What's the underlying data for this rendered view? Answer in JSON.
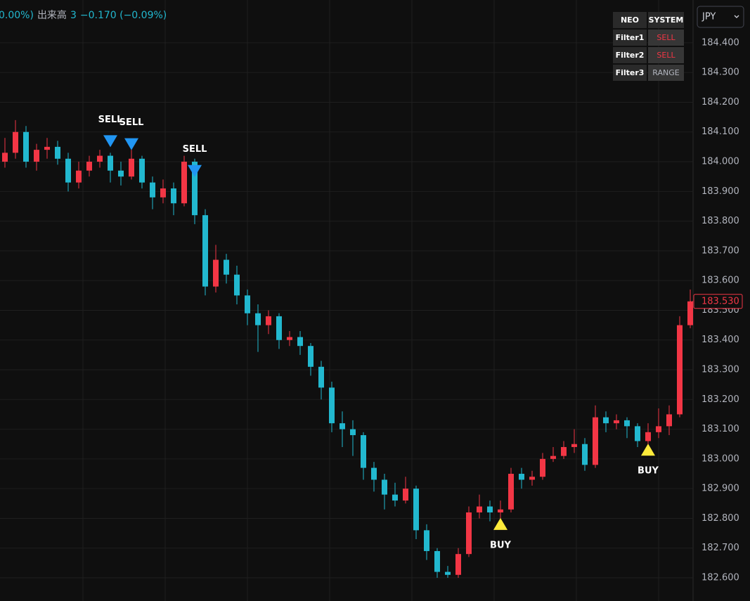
{
  "header": {
    "parts": [
      "0.00%)",
      "出来高",
      "3",
      "−0.170 (−0.09%)"
    ]
  },
  "currency": "JPY",
  "table": {
    "rows": [
      [
        "NEO",
        "SYSTEM"
      ],
      [
        "Filter1",
        "SELL"
      ],
      [
        "Filter2",
        "SELL"
      ],
      [
        "Filter3",
        "RANGE"
      ]
    ],
    "value_colors": [
      "#ffffff",
      "#f23645",
      "#f23645",
      "#b2b5be"
    ]
  },
  "chart_data": {
    "type": "candlestick",
    "up_color": "#f23645",
    "down_color": "#22b8cf",
    "grid": true,
    "open": [
      184.0,
      184.03,
      184.1,
      184.0,
      184.04,
      184.05,
      184.01,
      183.93,
      183.97,
      184.0,
      184.02,
      183.97,
      183.95,
      184.01,
      183.93,
      183.88,
      183.91,
      183.86,
      184.0,
      183.82,
      183.58,
      183.67,
      183.62,
      183.55,
      183.49,
      183.45,
      183.48,
      183.4,
      183.41,
      183.38,
      183.31,
      183.24,
      183.12,
      183.1,
      183.08,
      182.97,
      182.93,
      182.88,
      182.86,
      182.9,
      182.76,
      182.69,
      182.62,
      182.61,
      182.68,
      182.82,
      182.84,
      182.82,
      182.83,
      182.95,
      182.93,
      182.94,
      183.0,
      183.01,
      183.04,
      183.05,
      182.98,
      183.14,
      183.12,
      183.13,
      183.11,
      183.06,
      183.09,
      183.11,
      183.15,
      183.45
    ],
    "high": [
      184.08,
      184.14,
      184.12,
      184.06,
      184.08,
      184.07,
      184.03,
      184.0,
      184.02,
      184.04,
      184.03,
      184.0,
      184.04,
      184.02,
      183.95,
      183.94,
      183.93,
      184.02,
      184.01,
      183.84,
      183.72,
      183.69,
      183.65,
      183.57,
      183.52,
      183.5,
      183.49,
      183.43,
      183.43,
      183.39,
      183.33,
      183.26,
      183.16,
      183.13,
      183.09,
      182.99,
      182.95,
      182.92,
      182.94,
      182.91,
      182.78,
      182.7,
      182.64,
      182.7,
      182.84,
      182.88,
      182.86,
      182.86,
      182.97,
      182.97,
      182.96,
      183.02,
      183.04,
      183.06,
      183.1,
      183.07,
      183.18,
      183.16,
      183.15,
      183.14,
      183.12,
      183.12,
      183.17,
      183.18,
      183.48,
      183.57
    ],
    "low": [
      183.98,
      184.01,
      183.98,
      183.97,
      184.01,
      183.99,
      183.9,
      183.91,
      183.95,
      183.98,
      183.93,
      183.92,
      183.94,
      183.91,
      183.84,
      183.86,
      183.82,
      183.85,
      183.79,
      183.55,
      183.56,
      183.59,
      183.52,
      183.45,
      183.36,
      183.42,
      183.37,
      183.38,
      183.35,
      183.28,
      183.2,
      183.09,
      183.04,
      183.01,
      182.93,
      182.89,
      182.83,
      182.84,
      182.85,
      182.73,
      182.66,
      182.6,
      182.6,
      182.6,
      182.67,
      182.8,
      182.79,
      182.8,
      182.82,
      182.9,
      182.91,
      182.93,
      182.99,
      183.0,
      183.02,
      182.96,
      182.97,
      183.09,
      183.1,
      183.07,
      183.04,
      183.05,
      183.07,
      183.08,
      183.14,
      183.44
    ],
    "close": [
      184.03,
      184.1,
      184.0,
      184.04,
      184.05,
      184.01,
      183.93,
      183.97,
      184.0,
      184.02,
      183.97,
      183.95,
      184.01,
      183.93,
      183.88,
      183.91,
      183.86,
      184.0,
      183.82,
      183.58,
      183.67,
      183.62,
      183.55,
      183.49,
      183.45,
      183.48,
      183.4,
      183.41,
      183.38,
      183.31,
      183.24,
      183.12,
      183.1,
      183.08,
      182.97,
      182.93,
      182.88,
      182.86,
      182.9,
      182.76,
      182.69,
      182.62,
      182.61,
      182.68,
      182.82,
      182.84,
      182.82,
      182.83,
      182.95,
      182.93,
      182.94,
      183.0,
      183.01,
      183.04,
      183.05,
      182.98,
      183.14,
      183.12,
      183.13,
      183.11,
      183.06,
      183.09,
      183.11,
      183.15,
      183.45,
      183.53
    ],
    "ylim": [
      182.522,
      184.544
    ],
    "yticks": [
      {
        "value": 182.6,
        "label": "182.600"
      },
      {
        "value": 182.7,
        "label": "182.700"
      },
      {
        "value": 182.8,
        "label": "182.800"
      },
      {
        "value": 182.9,
        "label": "182.900"
      },
      {
        "value": 183.0,
        "label": "183.000"
      },
      {
        "value": 183.1,
        "label": "183.100"
      },
      {
        "value": 183.2,
        "label": "183.200"
      },
      {
        "value": 183.3,
        "label": "183.300"
      },
      {
        "value": 183.4,
        "label": "183.400"
      },
      {
        "value": 183.5,
        "label": "183.500"
      },
      {
        "value": 183.6,
        "label": "183.600"
      },
      {
        "value": 183.7,
        "label": "183.700"
      },
      {
        "value": 183.8,
        "label": "183.800"
      },
      {
        "value": 183.9,
        "label": "183.900"
      },
      {
        "value": 184.0,
        "label": "184.000"
      },
      {
        "value": 184.1,
        "label": "184.100"
      },
      {
        "value": 184.2,
        "label": "184.200"
      },
      {
        "value": 184.3,
        "label": "184.300"
      },
      {
        "value": 184.4,
        "label": "184.400"
      }
    ],
    "last_price": {
      "value": 183.53,
      "label": "183.530"
    },
    "signals": [
      {
        "label": "SELL",
        "candle": 10,
        "price": 184.07,
        "direction": "down",
        "color": "#2196f3"
      },
      {
        "label": "SELL",
        "candle": 12,
        "price": 184.06,
        "direction": "down",
        "color": "#2196f3"
      },
      {
        "label": "SELL",
        "candle": 18,
        "price": 183.97,
        "direction": "down",
        "color": "#2196f3"
      },
      {
        "label": "BUY",
        "candle": 47,
        "price": 182.78,
        "direction": "up",
        "color": "#ffeb3b"
      },
      {
        "label": "BUY",
        "candle": 61,
        "price": 183.03,
        "direction": "up",
        "color": "#ffeb3b"
      }
    ]
  }
}
